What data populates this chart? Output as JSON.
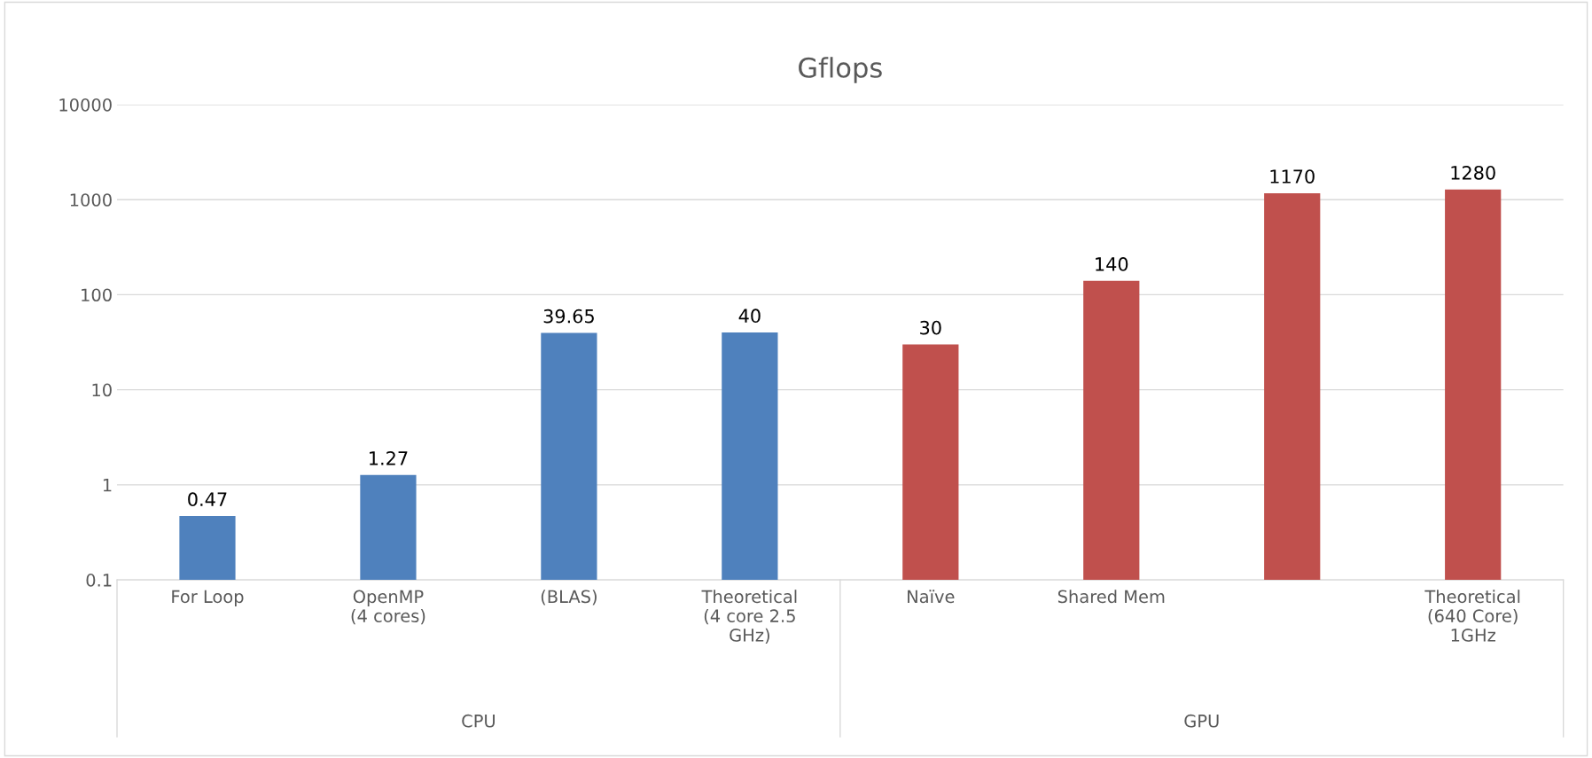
{
  "chart_data": {
    "type": "bar",
    "title": "Gflops",
    "categories": [
      "For Loop",
      "OpenMP\n(4 cores)",
      "(BLAS)",
      "Theoretical\n(4 core 2.5\nGHz)",
      "Naïve",
      "Shared Mem",
      null,
      "Theoretical\n(640 Core)\n1GHz"
    ],
    "series": [
      {
        "name": "CPU",
        "color": "#4f81bd",
        "values": [
          0.47,
          1.27,
          39.65,
          40,
          null,
          null,
          null,
          null
        ]
      },
      {
        "name": "GPU",
        "color": "#c0504d",
        "values": [
          null,
          null,
          null,
          null,
          30,
          140,
          1170,
          1280
        ]
      }
    ],
    "log": "y",
    "ylim": [
      0.1,
      10000
    ],
    "yticks": [
      0.1,
      1,
      10,
      100,
      1000,
      10000
    ],
    "grid": "y",
    "data_labels": true,
    "legend": false
  }
}
